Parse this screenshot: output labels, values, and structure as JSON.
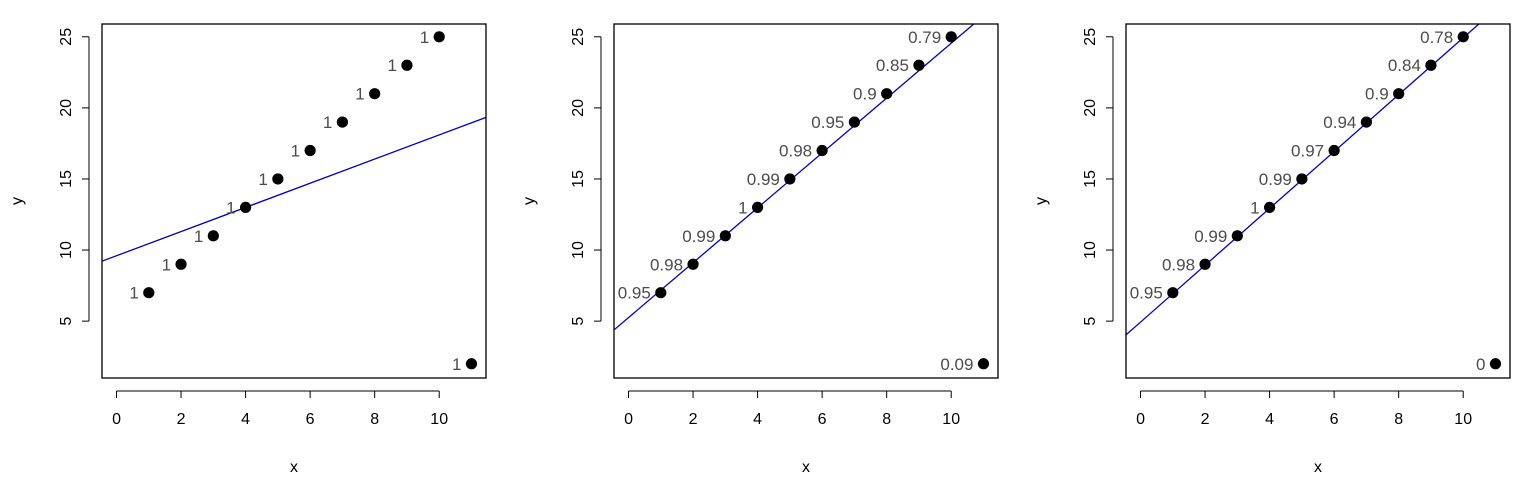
{
  "chart_data": [
    {
      "type": "scatter",
      "xlabel": "x",
      "ylabel": "y",
      "xlim": [
        -0.45,
        11.45
      ],
      "ylim": [
        1.0,
        25.9
      ],
      "xticks": [
        0,
        2,
        4,
        6,
        8,
        10
      ],
      "yticks": [
        5,
        10,
        15,
        20,
        25
      ],
      "x": [
        1,
        2,
        3,
        4,
        5,
        6,
        7,
        8,
        9,
        10,
        11
      ],
      "y": [
        7,
        9,
        11,
        13,
        15,
        17,
        19,
        21,
        23,
        25,
        2
      ],
      "point_labels": [
        "1",
        "1",
        "1",
        "1",
        "1",
        "1",
        "1",
        "1",
        "1",
        "1",
        "1"
      ],
      "fit_line": {
        "intercept": 9.6,
        "slope": 0.85
      },
      "colors": {
        "points": "#000000",
        "line": "#0000cc",
        "labels": "#4d4d4d"
      }
    },
    {
      "type": "scatter",
      "xlabel": "x",
      "ylabel": "y",
      "xlim": [
        -0.45,
        11.45
      ],
      "ylim": [
        1.0,
        25.9
      ],
      "xticks": [
        0,
        2,
        4,
        6,
        8,
        10
      ],
      "yticks": [
        5,
        10,
        15,
        20,
        25
      ],
      "x": [
        1,
        2,
        3,
        4,
        5,
        6,
        7,
        8,
        9,
        10,
        11
      ],
      "y": [
        7,
        9,
        11,
        13,
        15,
        17,
        19,
        21,
        23,
        25,
        2
      ],
      "point_labels": [
        "0.95",
        "0.98",
        "0.99",
        "1",
        "0.99",
        "0.98",
        "0.95",
        "0.9",
        "0.85",
        "0.79",
        "0.09"
      ],
      "fit_line": {
        "intercept": 5.25,
        "slope": 1.93
      },
      "colors": {
        "points": "#000000",
        "line": "#0000cc",
        "labels": "#4d4d4d"
      }
    },
    {
      "type": "scatter",
      "xlabel": "x",
      "ylabel": "y",
      "xlim": [
        -0.45,
        11.45
      ],
      "ylim": [
        1.0,
        25.9
      ],
      "xticks": [
        0,
        2,
        4,
        6,
        8,
        10
      ],
      "yticks": [
        5,
        10,
        15,
        20,
        25
      ],
      "x": [
        1,
        2,
        3,
        4,
        5,
        6,
        7,
        8,
        9,
        10,
        11
      ],
      "y": [
        7,
        9,
        11,
        13,
        15,
        17,
        19,
        21,
        23,
        25,
        2
      ],
      "point_labels": [
        "0.95",
        "0.98",
        "0.99",
        "1",
        "0.99",
        "0.97",
        "0.94",
        "0.9",
        "0.84",
        "0.78",
        "0"
      ],
      "fit_line": {
        "intercept": 4.93,
        "slope": 2.0
      },
      "colors": {
        "points": "#000000",
        "line": "#0000cc",
        "labels": "#4d4d4d"
      }
    }
  ]
}
